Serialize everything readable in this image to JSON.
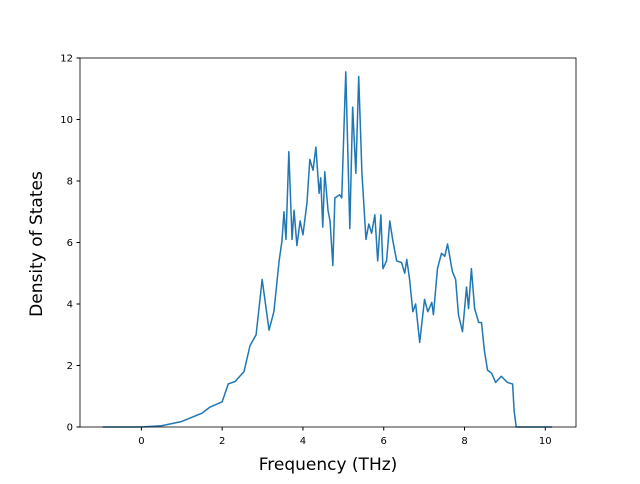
{
  "chart_data": {
    "type": "line",
    "x_label": "Frequency (THz)",
    "y_label": "Density of States",
    "x": [
      -0.96,
      0,
      0.5,
      1.0,
      1.5,
      1.7,
      2.0,
      2.15,
      2.32,
      2.54,
      2.69,
      2.84,
      2.99,
      3.16,
      3.28,
      3.41,
      3.48,
      3.53,
      3.58,
      3.65,
      3.73,
      3.78,
      3.85,
      3.93,
      4.0,
      4.1,
      4.17,
      4.25,
      4.32,
      4.4,
      4.44,
      4.49,
      4.54,
      4.62,
      4.67,
      4.74,
      4.79,
      4.91,
      4.96,
      5.06,
      5.16,
      5.23,
      5.31,
      5.38,
      5.46,
      5.56,
      5.63,
      5.7,
      5.78,
      5.85,
      5.93,
      5.98,
      6.07,
      6.15,
      6.22,
      6.32,
      6.44,
      6.52,
      6.57,
      6.64,
      6.72,
      6.79,
      6.89,
      7.01,
      7.09,
      7.19,
      7.23,
      7.33,
      7.43,
      7.51,
      7.58,
      7.7,
      7.78,
      7.85,
      7.95,
      8.05,
      8.1,
      8.17,
      8.25,
      8.35,
      8.42,
      8.49,
      8.57,
      8.67,
      8.77,
      8.91,
      9.06,
      9.19,
      9.23,
      9.28,
      10.17
    ],
    "series": [
      {
        "color": "#1f77b4",
        "values": [
          0,
          0,
          0.04,
          0.18,
          0.45,
          0.65,
          0.82,
          1.4,
          1.48,
          1.8,
          2.65,
          3.0,
          4.8,
          3.15,
          3.75,
          5.4,
          6.05,
          7.0,
          6.1,
          8.95,
          6.1,
          7.05,
          5.9,
          6.7,
          6.25,
          7.3,
          8.7,
          8.35,
          9.1,
          7.6,
          8.1,
          6.5,
          8.3,
          7.05,
          6.7,
          5.25,
          7.45,
          7.55,
          7.45,
          11.55,
          6.45,
          10.4,
          8.25,
          11.4,
          8.25,
          6.1,
          6.6,
          6.3,
          6.9,
          5.4,
          6.9,
          5.15,
          5.4,
          6.7,
          6.1,
          5.4,
          5.35,
          5.0,
          5.45,
          4.8,
          3.75,
          4.0,
          2.75,
          4.15,
          3.75,
          4.05,
          3.65,
          5.15,
          5.65,
          5.55,
          5.95,
          5.05,
          4.8,
          3.65,
          3.1,
          4.55,
          3.85,
          5.15,
          3.85,
          3.4,
          3.4,
          2.5,
          1.85,
          1.75,
          1.45,
          1.65,
          1.45,
          1.4,
          0.5,
          0,
          0
        ]
      }
    ],
    "xlim": [
      -1.52,
      10.76
    ],
    "ylim": [
      0,
      12
    ],
    "xticks": [
      0,
      2,
      4,
      6,
      8,
      10
    ],
    "yticks": [
      0,
      2,
      4,
      6,
      8,
      10,
      12
    ]
  }
}
